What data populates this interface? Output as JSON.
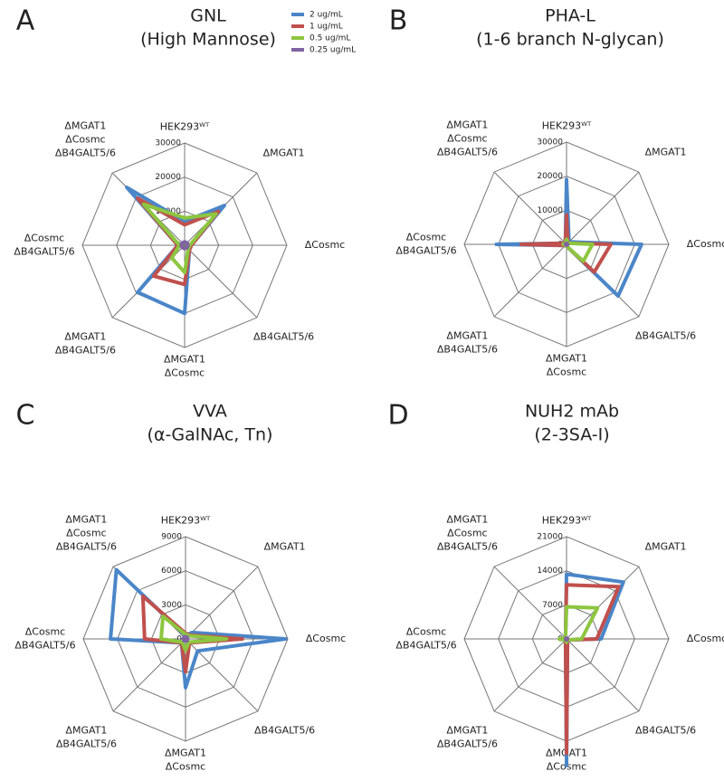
{
  "chart_data": [
    {
      "type": "radar",
      "panel": "A",
      "title": [
        "GNL",
        "(High Mannose)"
      ],
      "categories": [
        [
          "HEK293ᵂᵀ"
        ],
        [
          "ΔMGAT1"
        ],
        [
          "ΔCosmc"
        ],
        [
          "ΔB4GALT5/6"
        ],
        [
          "ΔMGAT1",
          "ΔCosmc"
        ],
        [
          "ΔMGAT1",
          "ΔB4GALT5/6"
        ],
        [
          "ΔCosmc",
          "ΔB4GALT5/6"
        ],
        [
          "ΔMGAT1",
          "ΔCosmc",
          "ΔB4GALT5/6"
        ]
      ],
      "rlim": [
        0,
        30000
      ],
      "rticks": [
        0,
        10000,
        20000,
        30000
      ],
      "legend": "top-right",
      "series": [
        {
          "name": "2 ug/mL",
          "color": "#4a86c8",
          "values": [
            7000,
            16500,
            2000,
            2000,
            20000,
            19500,
            2000,
            24000
          ]
        },
        {
          "name": "1 ug/mL",
          "color": "#c0504d",
          "values": [
            6000,
            14000,
            2000,
            2000,
            11500,
            12800,
            2000,
            19500
          ]
        },
        {
          "name": "0.5 ug/mL",
          "color": "#8dc63f",
          "values": [
            8000,
            13000,
            1500,
            1500,
            8000,
            5300,
            1500,
            17000
          ]
        },
        {
          "name": "0.25 ug/mL",
          "color": "#8064a2",
          "values": [
            1000,
            1000,
            1000,
            1000,
            1000,
            1000,
            1000,
            1000
          ]
        }
      ]
    },
    {
      "type": "radar",
      "panel": "B",
      "title": [
        "PHA-L",
        "(1-6 branch N-glycan)"
      ],
      "categories": [
        [
          "HEK293ᵂᵀ"
        ],
        [
          "ΔMGAT1"
        ],
        [
          "ΔCosmc"
        ],
        [
          "ΔB4GALT5/6"
        ],
        [
          "ΔMGAT1",
          "ΔCosmc"
        ],
        [
          "ΔMGAT1",
          "ΔB4GALT5/6"
        ],
        [
          "ΔCosmc",
          "ΔB4GALT5/6"
        ],
        [
          "ΔMGAT1",
          "ΔCosmc",
          "ΔB4GALT5/6"
        ]
      ],
      "rlim": [
        0,
        30000
      ],
      "rticks": [
        0,
        10000,
        20000,
        30000
      ],
      "series": [
        {
          "color": "#4a86c8",
          "values": [
            19000,
            1000,
            22000,
            21400,
            500,
            500,
            20600,
            500
          ]
        },
        {
          "color": "#c0504d",
          "values": [
            8600,
            500,
            13000,
            11500,
            500,
            500,
            13300,
            500
          ]
        },
        {
          "color": "#8dc63f",
          "values": [
            1500,
            500,
            7600,
            7000,
            500,
            500,
            1000,
            500
          ]
        },
        {
          "color": "#8064a2",
          "values": [
            300,
            300,
            300,
            300,
            300,
            300,
            300,
            300
          ]
        }
      ]
    },
    {
      "type": "radar",
      "panel": "C",
      "title": [
        "VVA",
        "(α-GalNAc, Tn)"
      ],
      "categories": [
        [
          "HEK293ᵂᵀ"
        ],
        [
          "ΔMGAT1"
        ],
        [
          "ΔCosmc"
        ],
        [
          "ΔB4GALT5/6"
        ],
        [
          "ΔMGAT1",
          "ΔCosmc"
        ],
        [
          "ΔMGAT1",
          "ΔB4GALT5/6"
        ],
        [
          "ΔCosmc",
          "ΔB4GALT5/6"
        ],
        [
          "ΔMGAT1",
          "ΔCosmc",
          "ΔB4GALT5/6"
        ]
      ],
      "rlim": [
        0,
        9000
      ],
      "rticks": [
        0,
        3000,
        6000,
        9000
      ],
      "series": [
        {
          "color": "#4a86c8",
          "values": [
            300,
            800,
            8800,
            1500,
            4300,
            500,
            6600,
            8600
          ]
        },
        {
          "color": "#c0504d",
          "values": [
            500,
            500,
            5000,
            500,
            2900,
            500,
            3600,
            5300
          ]
        },
        {
          "color": "#8dc63f",
          "values": [
            400,
            400,
            3600,
            400,
            1000,
            400,
            2150,
            2800
          ]
        },
        {
          "color": "#8064a2",
          "values": [
            200,
            200,
            200,
            200,
            200,
            200,
            200,
            200
          ]
        }
      ]
    },
    {
      "type": "radar",
      "panel": "D",
      "title": [
        "NUH2 mAb",
        "(2-3SA-I)"
      ],
      "categories": [
        [
          "HEK293ᵂᵀ"
        ],
        [
          "ΔMGAT1"
        ],
        [
          "ΔCosmc"
        ],
        [
          "ΔB4GALT5/6"
        ],
        [
          "ΔMGAT1",
          "ΔCosmc"
        ],
        [
          "ΔMGAT1",
          "ΔB4GALT5/6"
        ],
        [
          "ΔCosmc",
          "ΔB4GALT5/6"
        ],
        [
          "ΔMGAT1",
          "ΔCosmc",
          "ΔB4GALT5/6"
        ]
      ],
      "rlim": [
        0,
        21000
      ],
      "rticks": [
        0,
        7000,
        14000,
        21000
      ],
      "series": [
        {
          "color": "#4a86c8",
          "values": [
            13300,
            16500,
            7100,
            300,
            26000,
            300,
            300,
            300
          ]
        },
        {
          "color": "#c0504d",
          "values": [
            11100,
            15200,
            6200,
            300,
            23500,
            300,
            300,
            300
          ]
        },
        {
          "color": "#8dc63f",
          "values": [
            6600,
            9000,
            3100,
            300,
            700,
            300,
            1500,
            300
          ]
        },
        {
          "color": "#8064a2",
          "values": [
            200,
            200,
            200,
            200,
            200,
            200,
            200,
            200
          ]
        }
      ]
    }
  ]
}
